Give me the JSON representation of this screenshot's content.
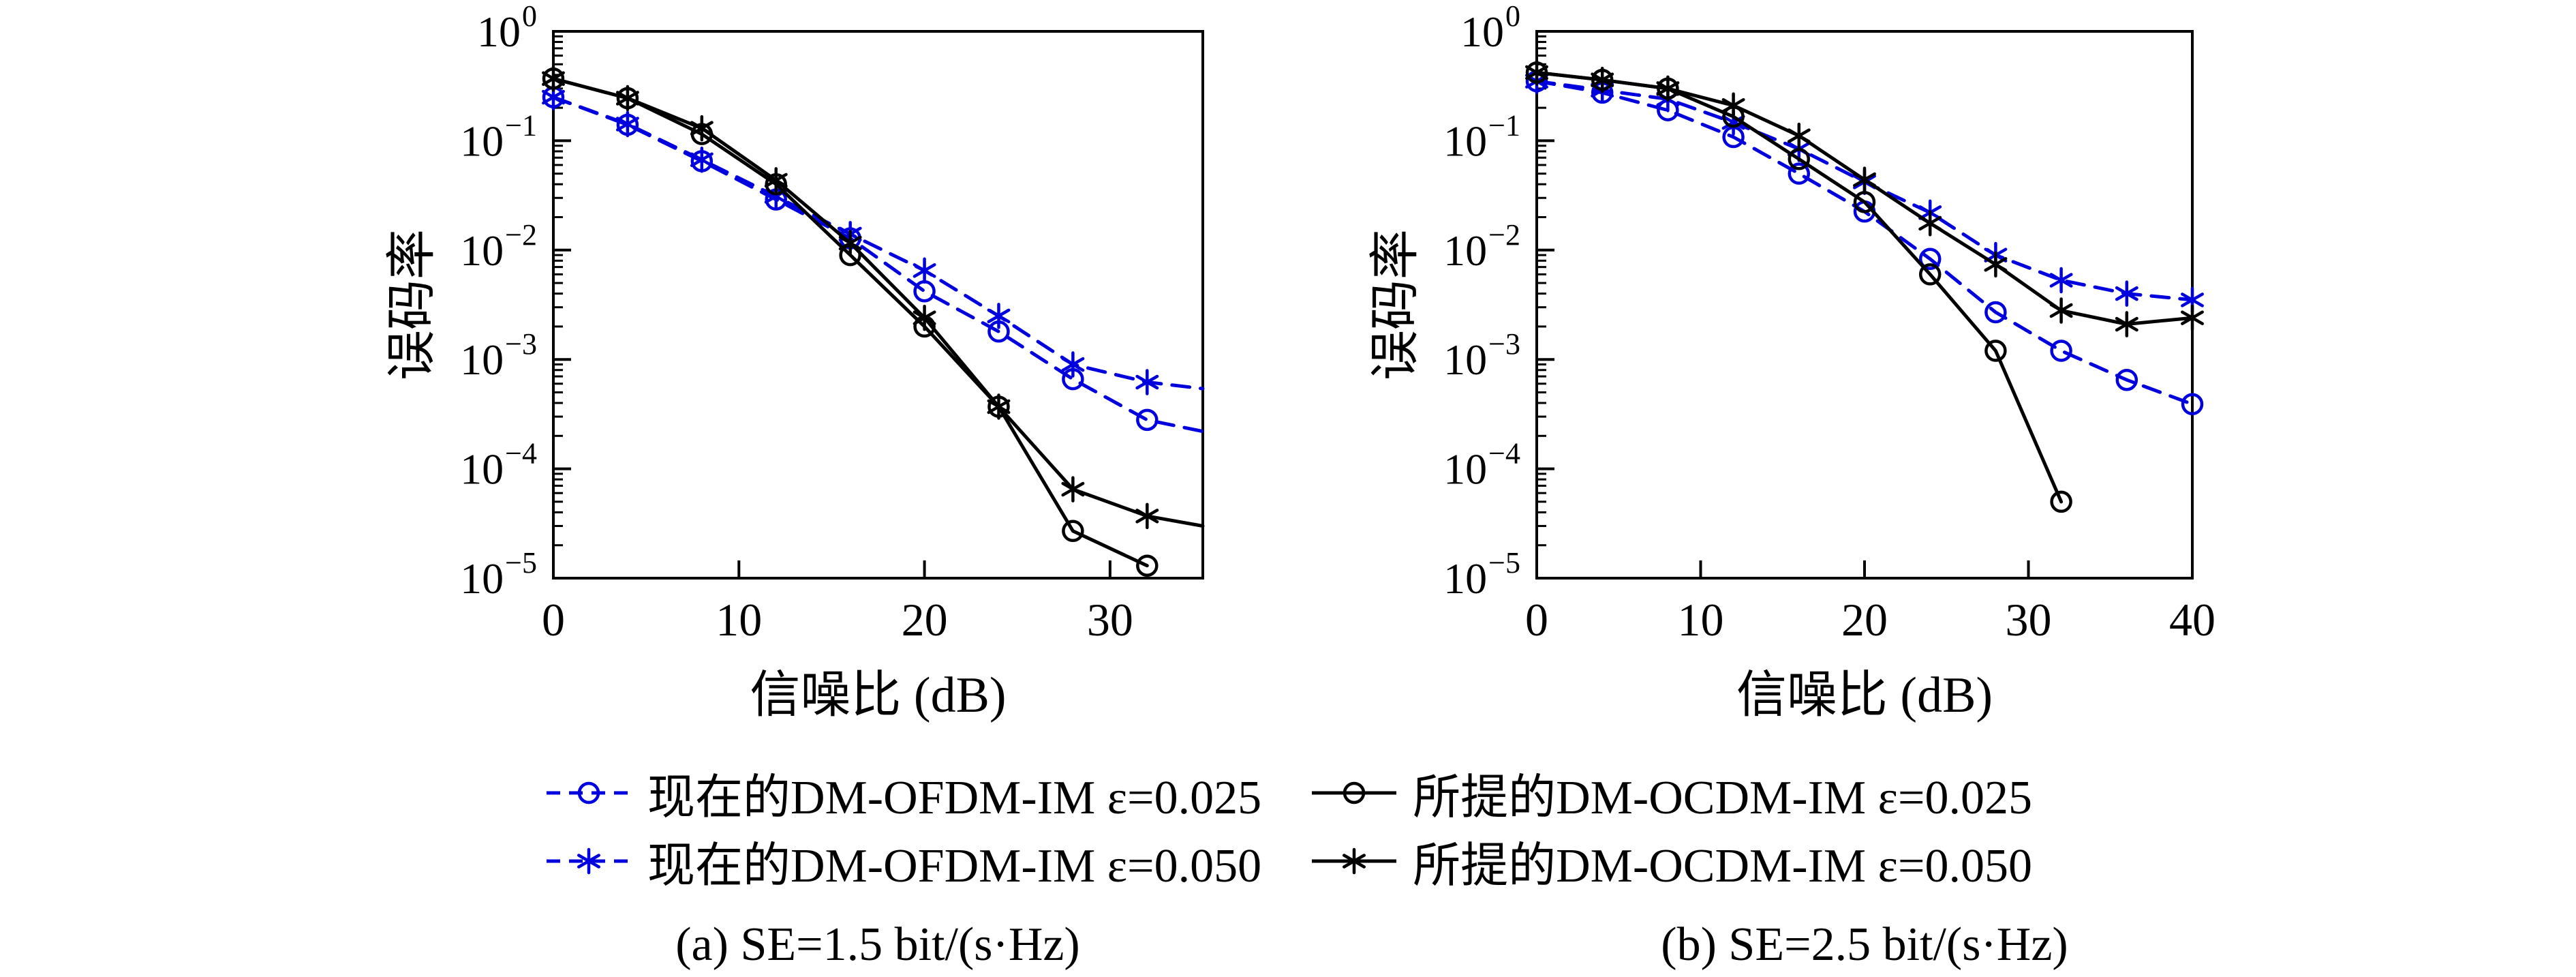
{
  "figure": {
    "background": "#ffffff",
    "axis_color": "#000000",
    "blue_accent": "#0000de"
  },
  "legend": {
    "entries": [
      {
        "id": "ofdm-0025",
        "label": "现在的DM-OFDM-IM ε=0.025",
        "color": "#0000de",
        "style": "dashed",
        "marker": "circle"
      },
      {
        "id": "ocdm-0025",
        "label": "所提的DM-OCDM-IM ε=0.025",
        "color": "#000000",
        "style": "solid",
        "marker": "circle"
      },
      {
        "id": "ofdm-0050",
        "label": "现在的DM-OFDM-IM ε=0.050",
        "color": "#0000de",
        "style": "dashed",
        "marker": "star"
      },
      {
        "id": "ocdm-0050",
        "label": "所提的DM-OCDM-IM ε=0.050",
        "color": "#000000",
        "style": "solid",
        "marker": "star"
      }
    ]
  },
  "captions": {
    "a": "(a) SE=1.5 bit/(s·Hz)",
    "b": "(b) SE=2.5 bit/(s·Hz)"
  },
  "chart_data": [
    {
      "type": "line",
      "subplot": "a",
      "xlabel": "信噪比 (dB)",
      "ylabel": "误码率",
      "xlim": [
        0,
        35
      ],
      "x_ticks": [
        0,
        10,
        20,
        30
      ],
      "y_scale": "log",
      "y_tick_exponents": [
        0,
        -1,
        -2,
        -3,
        -4,
        -5
      ],
      "ylim": [
        1e-05,
        1
      ],
      "grid": false,
      "series": [
        {
          "id": "ofdm-0025",
          "name": "现在的DM-OFDM-IM ε=0.025",
          "color": "#0000de",
          "style": "dashed",
          "marker": "circle",
          "x": [
            0,
            4,
            8,
            12,
            16,
            20,
            24,
            28,
            32
          ],
          "values": [
            0.25,
            0.14,
            0.065,
            0.029,
            0.0128,
            0.0042,
            0.0018,
            0.00066,
            0.00028
          ],
          "tail": {
            "x": 35,
            "y": 0.00022
          }
        },
        {
          "id": "ofdm-0050",
          "name": "现在的DM-OFDM-IM ε=0.050",
          "color": "#0000de",
          "style": "dashed",
          "marker": "star",
          "x": [
            0,
            4,
            8,
            12,
            16,
            20,
            24,
            28,
            32
          ],
          "values": [
            0.25,
            0.142,
            0.067,
            0.031,
            0.014,
            0.0065,
            0.0025,
            0.0009,
            0.00062
          ],
          "tail": {
            "x": 35,
            "y": 0.00054
          }
        },
        {
          "id": "ocdm-0025",
          "name": "所提的DM-OCDM-IM ε=0.025",
          "color": "#000000",
          "style": "solid",
          "marker": "circle",
          "x": [
            0,
            4,
            8,
            12,
            16,
            20,
            24,
            28,
            32
          ],
          "values": [
            0.37,
            0.245,
            0.115,
            0.04,
            0.009,
            0.002,
            0.00037,
            2.7e-05,
            1.3e-05
          ]
        },
        {
          "id": "ocdm-0050",
          "name": "所提的DM-OCDM-IM ε=0.050",
          "color": "#000000",
          "style": "solid",
          "marker": "star",
          "x": [
            0,
            4,
            8,
            12,
            16,
            20,
            24,
            28,
            32
          ],
          "values": [
            0.37,
            0.245,
            0.13,
            0.0435,
            0.0116,
            0.0024,
            0.00037,
            6.5e-05,
            3.7e-05
          ],
          "tail": {
            "x": 35,
            "y": 3e-05
          }
        }
      ]
    },
    {
      "type": "line",
      "subplot": "b",
      "xlabel": "信噪比 (dB)",
      "ylabel": "误码率",
      "xlim": [
        0,
        40
      ],
      "x_ticks": [
        0,
        10,
        20,
        30,
        40
      ],
      "y_scale": "log",
      "y_tick_exponents": [
        0,
        -1,
        -2,
        -3,
        -4,
        -5
      ],
      "ylim": [
        1e-05,
        1
      ],
      "grid": false,
      "series": [
        {
          "id": "ofdm-0025",
          "name": "现在的DM-OFDM-IM ε=0.025",
          "color": "#0000de",
          "style": "dashed",
          "marker": "circle",
          "x": [
            0,
            4,
            8,
            12,
            16,
            20,
            24,
            28,
            32,
            36,
            40
          ],
          "values": [
            0.35,
            0.275,
            0.19,
            0.108,
            0.05,
            0.0225,
            0.0083,
            0.0027,
            0.0012,
            0.00065,
            0.00039
          ]
        },
        {
          "id": "ofdm-0050",
          "name": "现在的DM-OFDM-IM ε=0.050",
          "color": "#0000de",
          "style": "dashed",
          "marker": "star",
          "x": [
            0,
            4,
            8,
            12,
            16,
            20,
            24,
            28,
            32,
            36,
            40
          ],
          "values": [
            0.35,
            0.29,
            0.24,
            0.147,
            0.084,
            0.042,
            0.022,
            0.009,
            0.0053,
            0.004,
            0.0035
          ]
        },
        {
          "id": "ocdm-0025",
          "name": "所提的DM-OCDM-IM ε=0.025",
          "color": "#000000",
          "style": "solid",
          "marker": "circle",
          "x": [
            0,
            4,
            8,
            12,
            16,
            20,
            24,
            28,
            32
          ],
          "values": [
            0.42,
            0.36,
            0.3,
            0.166,
            0.068,
            0.0275,
            0.006,
            0.0012,
            5e-05
          ]
        },
        {
          "id": "ocdm-0050",
          "name": "所提的DM-OCDM-IM ε=0.050",
          "color": "#000000",
          "style": "solid",
          "marker": "star",
          "x": [
            0,
            4,
            8,
            12,
            16,
            20,
            24,
            28,
            32,
            36,
            40
          ],
          "values": [
            0.42,
            0.36,
            0.3,
            0.21,
            0.111,
            0.044,
            0.0176,
            0.0074,
            0.0028,
            0.0021,
            0.0024
          ]
        }
      ]
    }
  ]
}
